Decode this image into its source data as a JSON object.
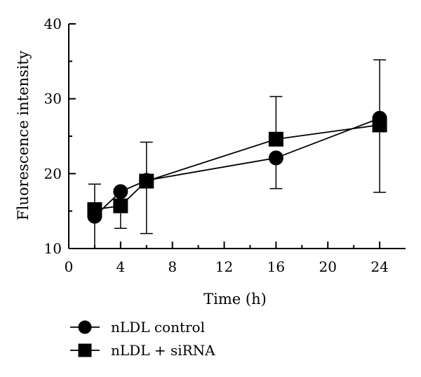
{
  "chart_data": {
    "type": "line",
    "xlabel": "Time (h)",
    "ylabel": "Fluorescence intensity",
    "xlim": [
      0,
      26
    ],
    "ylim": [
      10,
      40
    ],
    "xticks": [
      0,
      4,
      8,
      12,
      16,
      20,
      24
    ],
    "yticks": [
      10,
      20,
      30,
      40
    ],
    "xtick_labels": [
      "0",
      "4",
      "8",
      "12",
      "16",
      "20",
      "24"
    ],
    "ytick_labels": [
      "10",
      "20",
      "30",
      "40"
    ],
    "legend": {
      "placement": "bottom-left"
    },
    "grid": false,
    "series": [
      {
        "name": "nLDL control",
        "marker": "circle",
        "points": [
          {
            "x": 2,
            "y": 14.3,
            "err_low": 10.0,
            "err_high": 18.6
          },
          {
            "x": 4,
            "y": 17.6,
            "err_low": null,
            "err_high": null
          },
          {
            "x": 6,
            "y": 19.1,
            "err_low": null,
            "err_high": null
          },
          {
            "x": 16,
            "y": 22.1,
            "err_low": 18.0,
            "err_high": null
          },
          {
            "x": 24,
            "y": 27.4,
            "err_low": null,
            "err_high": 35.2
          }
        ]
      },
      {
        "name": "nLDL + siRNA",
        "marker": "square",
        "points": [
          {
            "x": 2,
            "y": 15.2,
            "err_low": null,
            "err_high": null
          },
          {
            "x": 4,
            "y": 15.7,
            "err_low": 12.7,
            "err_high": null
          },
          {
            "x": 6,
            "y": 19.0,
            "err_low": 12.0,
            "err_high": 24.2
          },
          {
            "x": 16,
            "y": 24.6,
            "err_low": null,
            "err_high": 30.3
          },
          {
            "x": 24,
            "y": 26.5,
            "err_low": 17.5,
            "err_high": null
          }
        ]
      }
    ]
  }
}
